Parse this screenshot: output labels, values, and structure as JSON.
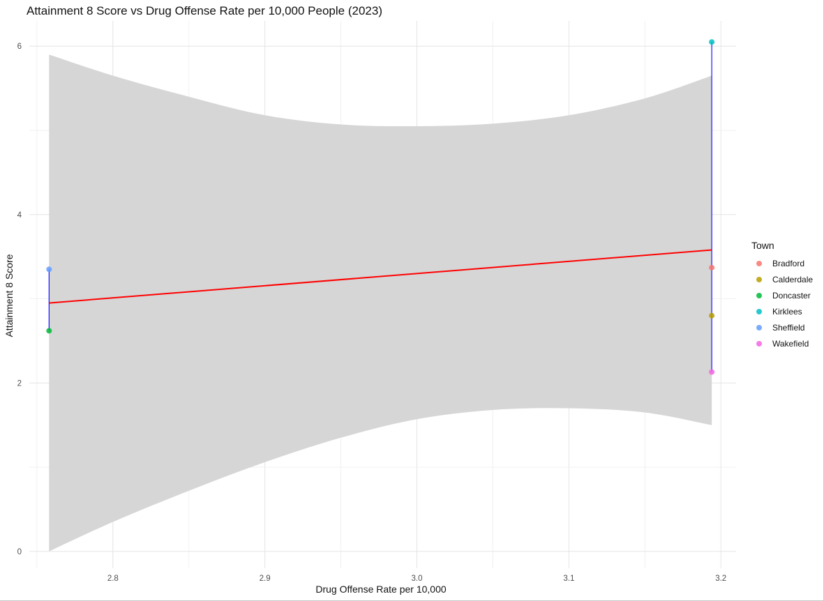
{
  "chart_data": {
    "type": "scatter",
    "title": "Attainment 8 Score vs Drug Offense Rate per 10,000 People (2023)",
    "xlabel": "Drug Offense Rate per 10,000",
    "ylabel": "Attainment 8 Score",
    "xlim": [
      2.745,
      3.21
    ],
    "ylim": [
      -0.2,
      6.3
    ],
    "x_ticks": [
      2.8,
      2.9,
      3.0,
      3.1,
      3.2
    ],
    "x_tick_labels": [
      "2.8",
      "2.9",
      "3.0",
      "3.1",
      "3.2"
    ],
    "y_ticks": [
      0,
      2,
      4,
      6
    ],
    "y_tick_labels": [
      "0",
      "2",
      "4",
      "6"
    ],
    "grid": true,
    "legend": {
      "title": "Town",
      "position": "right",
      "entries": [
        {
          "name": "Bradford",
          "color": "#F8766D"
        },
        {
          "name": "Calderdale",
          "color": "#B79F00"
        },
        {
          "name": "Doncaster",
          "color": "#00BA38"
        },
        {
          "name": "Kirklees",
          "color": "#00BFC4"
        },
        {
          "name": "Sheffield",
          "color": "#619CFF"
        },
        {
          "name": "Wakefield",
          "color": "#F564E3"
        }
      ]
    },
    "points": [
      {
        "town": "Sheffield",
        "x": 2.758,
        "y": 3.35
      },
      {
        "town": "Doncaster",
        "x": 2.758,
        "y": 2.62
      },
      {
        "town": "Kirklees",
        "x": 3.194,
        "y": 6.05
      },
      {
        "town": "Bradford",
        "x": 3.194,
        "y": 3.37
      },
      {
        "town": "Calderdale",
        "x": 3.194,
        "y": 2.8
      },
      {
        "town": "Wakefield",
        "x": 3.194,
        "y": 2.13
      }
    ],
    "segments": [
      {
        "x": 2.758,
        "y_from": 2.62,
        "y_to": 3.35,
        "color": "#0000FF"
      },
      {
        "x": 3.194,
        "y_from": 2.13,
        "y_to": 6.05,
        "color": "#0000FF"
      }
    ],
    "regression": {
      "color": "#FF0000",
      "x": [
        2.758,
        3.194
      ],
      "y": [
        2.95,
        3.58
      ]
    },
    "confidence_band": {
      "color": "#D6D6D6",
      "x": [
        2.758,
        2.8,
        2.85,
        2.9,
        2.95,
        3.0,
        3.05,
        3.1,
        3.15,
        3.194
      ],
      "upper": [
        5.9,
        5.65,
        5.4,
        5.18,
        5.07,
        5.05,
        5.08,
        5.18,
        5.38,
        5.65
      ],
      "lower": [
        0.0,
        0.35,
        0.72,
        1.06,
        1.35,
        1.57,
        1.68,
        1.7,
        1.65,
        1.5
      ]
    }
  }
}
